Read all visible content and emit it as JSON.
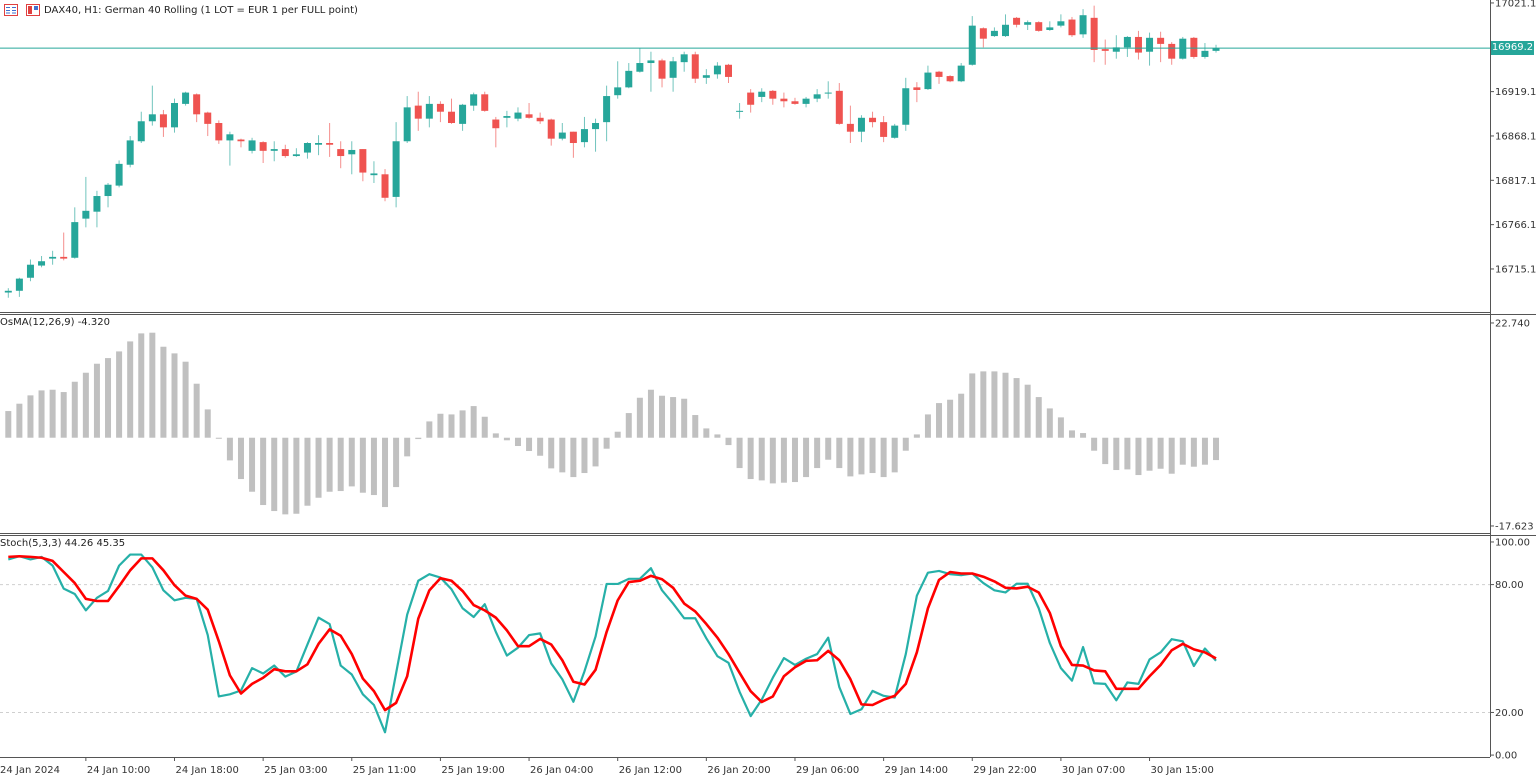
{
  "header": {
    "title": "DAX40, H1:  German 40 Rolling (1 LOT = EUR 1 per FULL point)",
    "icons": [
      "indicator-list-icon",
      "template-icon"
    ]
  },
  "x_axis": {
    "ticks": [
      {
        "label": "24 Jan 2024",
        "index": -1
      },
      {
        "label": "24 Jan 10:00",
        "index": 7
      },
      {
        "label": "24 Jan 18:00",
        "index": 15
      },
      {
        "label": "25 Jan 03:00",
        "index": 23
      },
      {
        "label": "25 Jan 11:00",
        "index": 31
      },
      {
        "label": "25 Jan 19:00",
        "index": 39
      },
      {
        "label": "26 Jan 04:00",
        "index": 47
      },
      {
        "label": "26 Jan 12:00",
        "index": 55
      },
      {
        "label": "26 Jan 20:00",
        "index": 63
      },
      {
        "label": "29 Jan 06:00",
        "index": 71
      },
      {
        "label": "29 Jan 14:00",
        "index": 79
      },
      {
        "label": "29 Jan 22:00",
        "index": 87
      },
      {
        "label": "30 Jan 07:00",
        "index": 95
      },
      {
        "label": "30 Jan 15:00",
        "index": 103
      }
    ]
  },
  "chart_data": [
    {
      "type": "candlestick",
      "symbol": "DAX40",
      "timeframe": "H1",
      "ylim": [
        16665.6,
        17024.5
      ],
      "y_ticks": [
        "17021.1",
        "16919.1",
        "16868.1",
        "16817.1",
        "16766.1",
        "16715.1"
      ],
      "current_price": "16969.2",
      "colors": {
        "up": "#26a69a",
        "down": "#ef5350",
        "price_line": "#26a69a"
      },
      "ohlc": [
        [
          16688,
          16693,
          16682,
          16690
        ],
        [
          16690,
          16705,
          16683,
          16704
        ],
        [
          16705,
          16726,
          16701,
          16720
        ],
        [
          16719,
          16730,
          16717,
          16724
        ],
        [
          16727,
          16736,
          16720,
          16729
        ],
        [
          16729,
          16757,
          16725,
          16727
        ],
        [
          16728,
          16786,
          16727,
          16769
        ],
        [
          16773,
          16821,
          16763,
          16782
        ],
        [
          16781,
          16805,
          16763,
          16799
        ],
        [
          16799,
          16814,
          16786,
          16812
        ],
        [
          16811,
          16840,
          16809,
          16836
        ],
        [
          16835,
          16868,
          16832,
          16863
        ],
        [
          16862,
          16896,
          16860,
          16885
        ],
        [
          16885,
          16926,
          16880,
          16893
        ],
        [
          16893,
          16898,
          16867,
          16878
        ],
        [
          16878,
          16911,
          16872,
          16906
        ],
        [
          16905,
          16919,
          16903,
          16918
        ],
        [
          16916,
          16917,
          16884,
          16893
        ],
        [
          16895,
          16896,
          16868,
          16882
        ],
        [
          16883,
          16886,
          16859,
          16863
        ],
        [
          16863,
          16873,
          16834,
          16870
        ],
        [
          16864,
          16865,
          16855,
          16862
        ],
        [
          16851,
          16866,
          16848,
          16863
        ],
        [
          16861,
          16862,
          16837,
          16851
        ],
        [
          16851,
          16862,
          16839,
          16853
        ],
        [
          16853,
          16858,
          16843,
          16845
        ],
        [
          16845,
          16854,
          16844,
          16847
        ],
        [
          16849,
          16861,
          16842,
          16860
        ],
        [
          16858,
          16869,
          16846,
          16860
        ],
        [
          16860,
          16883,
          16844,
          16858
        ],
        [
          16853,
          16862,
          16831,
          16845
        ],
        [
          16847,
          16862,
          16824,
          16852
        ],
        [
          16853,
          16853,
          16816,
          16826
        ],
        [
          16823,
          16839,
          16814,
          16825
        ],
        [
          16824,
          16830,
          16793,
          16797
        ],
        [
          16798,
          16884,
          16786,
          16862
        ],
        [
          16862,
          16914,
          16860,
          16901
        ],
        [
          16903,
          16919,
          16874,
          16888
        ],
        [
          16888,
          16914,
          16878,
          16905
        ],
        [
          16905,
          16908,
          16884,
          16896
        ],
        [
          16896,
          16911,
          16882,
          16883
        ],
        [
          16882,
          16905,
          16874,
          16904
        ],
        [
          16903,
          16918,
          16897,
          16916
        ],
        [
          16916,
          16919,
          16896,
          16897
        ],
        [
          16887,
          16890,
          16855,
          16877
        ],
        [
          16889,
          16897,
          16878,
          16891
        ],
        [
          16888,
          16901,
          16885,
          16895
        ],
        [
          16893,
          16906,
          16888,
          16889
        ],
        [
          16889,
          16895,
          16882,
          16885
        ],
        [
          16887,
          16888,
          16857,
          16865
        ],
        [
          16865,
          16883,
          16863,
          16872
        ],
        [
          16873,
          16873,
          16843,
          16860
        ],
        [
          16861,
          16890,
          16855,
          16876
        ],
        [
          16876,
          16888,
          16850,
          16883
        ],
        [
          16884,
          16926,
          16862,
          16914
        ],
        [
          16915,
          16954,
          16911,
          16924
        ],
        [
          16924,
          16952,
          16923,
          16943
        ],
        [
          16942,
          16969,
          16941,
          16952
        ],
        [
          16952,
          16965,
          16919,
          16955
        ],
        [
          16955,
          16957,
          16924,
          16934
        ],
        [
          16935,
          16959,
          16919,
          16954
        ],
        [
          16953,
          16965,
          16942,
          16962
        ],
        [
          16962,
          16965,
          16929,
          16934
        ],
        [
          16935,
          16945,
          16928,
          16938
        ],
        [
          16939,
          16953,
          16934,
          16949
        ],
        [
          16950,
          16951,
          16929,
          16936
        ],
        [
          16896,
          16906,
          16888,
          16897
        ],
        [
          16918,
          16922,
          16895,
          16904
        ],
        [
          16913,
          16923,
          16907,
          16919
        ],
        [
          16920,
          16921,
          16904,
          16911
        ],
        [
          16911,
          16918,
          16901,
          16908
        ],
        [
          16908,
          16912,
          16904,
          16905
        ],
        [
          16905,
          16913,
          16901,
          16911
        ],
        [
          16911,
          16922,
          16907,
          16916
        ],
        [
          16917,
          16931,
          16911,
          16918
        ],
        [
          16920,
          16929,
          16881,
          16882
        ],
        [
          16882,
          16903,
          16860,
          16873
        ],
        [
          16873,
          16892,
          16861,
          16889
        ],
        [
          16889,
          16896,
          16878,
          16884
        ],
        [
          16884,
          16891,
          16861,
          16867
        ],
        [
          16866,
          16882,
          16865,
          16880
        ],
        [
          16881,
          16935,
          16874,
          16923
        ],
        [
          16924,
          16930,
          16907,
          16921
        ],
        [
          16922,
          16949,
          16921,
          16941
        ],
        [
          16942,
          16943,
          16928,
          16936
        ],
        [
          16937,
          16938,
          16930,
          16931
        ],
        [
          16931,
          16952,
          16930,
          16949
        ],
        [
          16950,
          17006,
          16949,
          16995
        ],
        [
          16992,
          16993,
          16970,
          16980
        ],
        [
          16983,
          16993,
          16982,
          16989
        ],
        [
          16983,
          17008,
          16982,
          16996
        ],
        [
          17004,
          17005,
          16993,
          16996
        ],
        [
          16996,
          17001,
          16990,
          16999
        ],
        [
          16999,
          17000,
          16988,
          16989
        ],
        [
          16990,
          17000,
          16989,
          16993
        ],
        [
          16995,
          17008,
          16993,
          17000
        ],
        [
          17002,
          17005,
          16982,
          16984
        ],
        [
          16985,
          17014,
          16981,
          17007
        ],
        [
          17004,
          17018,
          16953,
          16967
        ],
        [
          16968,
          16979,
          16950,
          16966
        ],
        [
          16965,
          16984,
          16957,
          16970
        ],
        [
          16970,
          16983,
          16959,
          16982
        ],
        [
          16982,
          16989,
          16956,
          16964
        ],
        [
          16965,
          16987,
          16949,
          16981
        ],
        [
          16981,
          16988,
          16953,
          16974
        ],
        [
          16974,
          16976,
          16950,
          16957
        ],
        [
          16957,
          16982,
          16956,
          16980
        ],
        [
          16981,
          16982,
          16957,
          16959
        ],
        [
          16959,
          16975,
          16957,
          16966
        ],
        [
          16966,
          16973,
          16964,
          16969.2
        ]
      ]
    },
    {
      "type": "bar",
      "title": "OsMA(12,26,9) -4.320",
      "ylim": [
        -18.4,
        23.7
      ],
      "y_ticks": [
        "22.740",
        "-17.623"
      ],
      "y_tick_values": [
        22.74,
        -17.623
      ],
      "color": "#c0c0c0",
      "values": [
        5.15,
        6.57,
        8.18,
        9.14,
        9.27,
        8.82,
        10.81,
        12.55,
        14.29,
        15.38,
        16.67,
        18.6,
        20.15,
        20.28,
        17.57,
        16.29,
        14.68,
        10.43,
        5.47,
        -0.2,
        -4.38,
        -7.98,
        -10.43,
        -13.0,
        -14.16,
        -14.8,
        -14.68,
        -13.13,
        -11.59,
        -10.43,
        -10.3,
        -9.4,
        -10.62,
        -11.07,
        -13.39,
        -9.53,
        -3.6,
        -0.26,
        3.15,
        4.63,
        4.5,
        5.28,
        6.11,
        4.05,
        0.84,
        -0.5,
        -1.6,
        -2.57,
        -3.48,
        -5.92,
        -6.69,
        -7.6,
        -6.82,
        -5.54,
        -2.12,
        1.16,
        4.76,
        7.72,
        9.27,
        8.11,
        7.85,
        7.53,
        4.38,
        1.8,
        0.64,
        -1.42,
        -5.86,
        -7.98,
        -8.24,
        -8.82,
        -8.69,
        -8.56,
        -7.6,
        -5.86,
        -4.25,
        -5.86,
        -7.47,
        -7.08,
        -6.82,
        -7.6,
        -6.69,
        -2.51,
        0.64,
        4.5,
        6.69,
        7.34,
        8.5,
        12.42,
        12.81,
        12.81,
        12.55,
        11.52,
        10.24,
        7.85,
        5.66,
        3.93,
        1.42,
        0.9,
        -2.51,
        -5.09,
        -6.24,
        -6.12,
        -7.21,
        -6.37,
        -5.99,
        -6.95,
        -5.21,
        -5.6,
        -5.21,
        -4.32
      ]
    },
    {
      "type": "line",
      "title": "Stoch(5,3,3) 44.26 45.35",
      "ylim": [
        -0.9,
        102.8
      ],
      "y_ticks": [
        "100.00",
        "80.00",
        "20.00",
        "0.00"
      ],
      "y_tick_values": [
        100,
        80,
        20,
        0
      ],
      "levels": [
        80,
        20
      ],
      "series": [
        {
          "color": "#26b0a8",
          "values": [
            91.8,
            93.3,
            91.8,
            93,
            88.9,
            78.1,
            75.6,
            67.9,
            73.8,
            77,
            88.9,
            94.1,
            94.1,
            88.1,
            77.3,
            72.6,
            73.8,
            73.3,
            56.3,
            27.5,
            28.5,
            30.3,
            40.8,
            38.3,
            42,
            36.8,
            39.2,
            51.9,
            64.5,
            61.5,
            42,
            37.8,
            28.5,
            23.5,
            10.7,
            38.4,
            65.9,
            81.8,
            84.9,
            83.3,
            77.8,
            68.9,
            64.8,
            70.8,
            57.8,
            46.7,
            50.4,
            56.3,
            57.1,
            43,
            35.6,
            25,
            39.3,
            55.6,
            80.3,
            80.3,
            82.7,
            82.7,
            87.7,
            77.3,
            71.1,
            64.2,
            64.2,
            54.8,
            46.4,
            43.3,
            29.7,
            18.3,
            26,
            36.3,
            45.5,
            42.3,
            45.2,
            47.4,
            55.1,
            31.9,
            19.3,
            21.5,
            30.1,
            27.8,
            27,
            47.4,
            74.8,
            85.6,
            86.4,
            84.9,
            84.4,
            85.2,
            80.7,
            77.3,
            76.3,
            80.4,
            80.4,
            68.9,
            52.6,
            40.8,
            34.9,
            50.7,
            33.7,
            33.4,
            25.7,
            34.1,
            33.4,
            44.9,
            48.2,
            54.4,
            53.4,
            41.8,
            50,
            44.26
          ]
        },
        {
          "color": "#ff0000",
          "values": [
            93,
            93.3,
            93,
            92.6,
            91.1,
            85.9,
            80.7,
            73.3,
            72.3,
            72.3,
            79.3,
            86.7,
            92.3,
            92.3,
            86.7,
            79.7,
            74.8,
            73.3,
            68.2,
            53.4,
            37.4,
            28.9,
            33.4,
            36.3,
            40.3,
            39.3,
            39.3,
            42.6,
            52.2,
            59,
            56,
            47.4,
            35.9,
            30,
            21.1,
            24.5,
            37,
            64,
            77.3,
            83,
            81.8,
            77,
            70.4,
            67.9,
            64.5,
            58.5,
            51.1,
            51.1,
            54.5,
            51.9,
            44.5,
            34.4,
            33.1,
            40,
            57.8,
            72.6,
            81.2,
            81.8,
            84.1,
            82.5,
            78.5,
            71.1,
            67.4,
            61.5,
            55.1,
            47.4,
            38.6,
            30,
            24.9,
            27.5,
            37,
            41.2,
            44.2,
            44.5,
            48.9,
            44.5,
            35.6,
            23.8,
            23.5,
            26,
            27.8,
            33.4,
            48.2,
            68.9,
            82.2,
            85.9,
            85.2,
            85.2,
            83.7,
            81.5,
            78.5,
            78.2,
            79,
            76.3,
            66.7,
            51.1,
            42.3,
            42,
            39.7,
            39.3,
            31.1,
            31.1,
            31.1,
            37,
            42.3,
            49.2,
            52.2,
            49.6,
            48.2,
            45.35
          ]
        }
      ]
    }
  ]
}
